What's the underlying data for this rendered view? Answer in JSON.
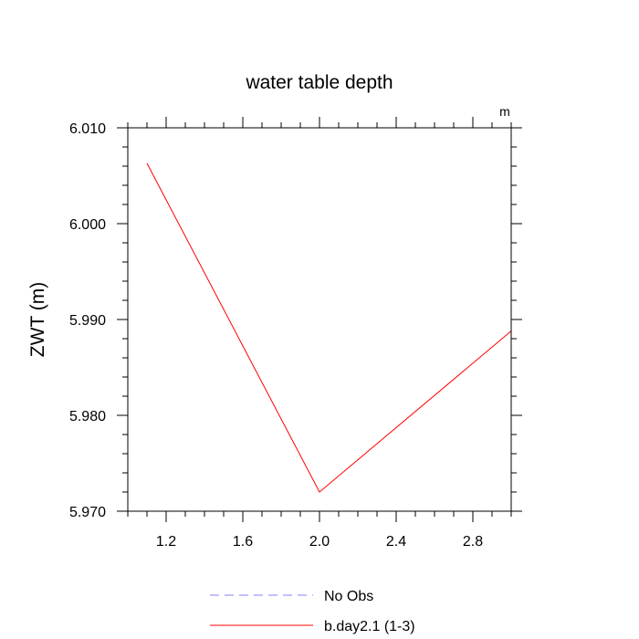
{
  "chart_data": {
    "type": "line",
    "title": "water table depth",
    "units_label": "m",
    "xlabel": "",
    "ylabel": "ZWT  (m)",
    "xlim": [
      1.0,
      3.0
    ],
    "ylim": [
      5.97,
      6.01
    ],
    "x_ticks": [
      1.2,
      1.6,
      2.0,
      2.4,
      2.8
    ],
    "x_tick_labels": [
      "1.2",
      "1.6",
      "2.0",
      "2.4",
      "2.8"
    ],
    "y_ticks": [
      5.97,
      5.98,
      5.99,
      6.0,
      6.01
    ],
    "y_tick_labels": [
      "5.970",
      "5.980",
      "5.990",
      "6.000",
      "6.010"
    ],
    "series": [
      {
        "name": "b.day2.1 (1-3)",
        "color": "#ff0000",
        "dash": "solid",
        "x": [
          1.1,
          2.0,
          3.0
        ],
        "y": [
          6.0063,
          5.972,
          5.9888
        ]
      }
    ],
    "legend": [
      {
        "label": "No Obs",
        "color": "#8080ff",
        "dash": "dashed"
      },
      {
        "label": "b.day2.1 (1-3)",
        "color": "#ff0000",
        "dash": "solid"
      }
    ],
    "legend_position": "bottom",
    "grid": false
  }
}
